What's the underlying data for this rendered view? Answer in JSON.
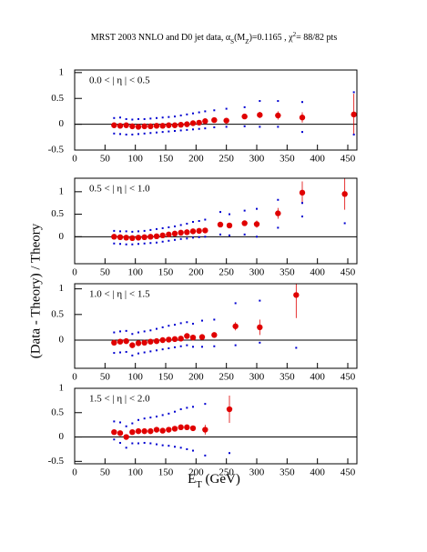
{
  "title": [
    {
      "text": "MRST 2003 NNLO and D0 jet data, α"
    },
    {
      "text": "S",
      "shift": "sub"
    },
    {
      "text": "(M"
    },
    {
      "text": "Z",
      "shift": "sub"
    },
    {
      "text": ")=0.1165 , χ"
    },
    {
      "text": "2",
      "shift": "super"
    },
    {
      "text": "= 88/82 pts"
    }
  ],
  "ylabel": "(Data - Theory) / Theory",
  "xlabel": [
    {
      "text": "E"
    },
    {
      "text": "T",
      "shift": "sub"
    },
    {
      "text": " (GeV)"
    }
  ],
  "chart_data": [
    {
      "type": "scatter",
      "label": "0.0 < | η | < 0.5",
      "x": [
        65,
        75,
        85,
        95,
        105,
        115,
        125,
        135,
        145,
        155,
        165,
        175,
        185,
        195,
        205,
        215,
        230,
        250,
        280,
        305,
        335,
        375,
        460
      ],
      "series": [
        {
          "color": "#e00000",
          "values": [
            -0.02,
            -0.03,
            -0.02,
            -0.04,
            -0.05,
            -0.04,
            -0.04,
            -0.03,
            -0.03,
            -0.02,
            -0.02,
            -0.01,
            0.0,
            0.02,
            0.03,
            0.06,
            0.08,
            0.07,
            0.15,
            0.18,
            0.17,
            0.13,
            0.19
          ],
          "errors": [
            0.02,
            0.02,
            0.02,
            0.02,
            0.02,
            0.02,
            0.02,
            0.02,
            0.02,
            0.02,
            0.02,
            0.02,
            0.02,
            0.02,
            0.02,
            0.03,
            0.03,
            0.03,
            0.05,
            0.06,
            0.08,
            0.1,
            0.4
          ]
        },
        {
          "color": "#0000d0",
          "values": [
            0.12,
            0.13,
            0.1,
            0.09,
            0.1,
            0.1,
            0.11,
            0.12,
            0.13,
            0.14,
            0.15,
            0.17,
            0.19,
            0.21,
            0.23,
            0.25,
            0.27,
            0.3,
            0.33,
            0.45,
            0.45,
            0.43,
            0.62
          ]
        },
        {
          "color": "#0000d0",
          "values": [
            -0.18,
            -0.19,
            -0.2,
            -0.2,
            -0.19,
            -0.18,
            -0.17,
            -0.16,
            -0.15,
            -0.14,
            -0.13,
            -0.12,
            -0.11,
            -0.1,
            -0.09,
            -0.08,
            -0.06,
            -0.05,
            -0.04,
            -0.05,
            -0.05,
            -0.15,
            -0.2
          ]
        }
      ],
      "xlim": [
        0,
        465
      ],
      "xticks": [
        0,
        50,
        100,
        150,
        200,
        250,
        300,
        350,
        400,
        450
      ],
      "ylim": [
        -0.5,
        1.05
      ],
      "yticks": [
        -0.5,
        0,
        0.5,
        1
      ]
    },
    {
      "type": "scatter",
      "label": "0.5 < | η | < 1.0",
      "x": [
        65,
        75,
        85,
        95,
        105,
        115,
        125,
        135,
        145,
        155,
        165,
        175,
        185,
        195,
        205,
        215,
        240,
        255,
        280,
        300,
        335,
        375,
        445
      ],
      "series": [
        {
          "color": "#e00000",
          "values": [
            0,
            -0.01,
            -0.02,
            -0.03,
            -0.02,
            -0.01,
            0,
            0.01,
            0.03,
            0.05,
            0.07,
            0.09,
            0.1,
            0.12,
            0.13,
            0.14,
            0.27,
            0.25,
            0.3,
            0.28,
            0.52,
            0.98,
            0.95
          ],
          "errors": [
            0.02,
            0.02,
            0.02,
            0.02,
            0.02,
            0.02,
            0.02,
            0.02,
            0.02,
            0.02,
            0.02,
            0.02,
            0.02,
            0.02,
            0.03,
            0.03,
            0.04,
            0.05,
            0.05,
            0.08,
            0.12,
            0.25,
            0.35
          ]
        },
        {
          "color": "#0000d0",
          "values": [
            0.13,
            0.12,
            0.12,
            0.11,
            0.12,
            0.13,
            0.15,
            0.17,
            0.19,
            0.21,
            0.23,
            0.26,
            0.29,
            0.33,
            0.35,
            0.38,
            0.55,
            0.5,
            0.58,
            0.62,
            0.82,
            0.75,
            null
          ]
        },
        {
          "color": "#0000d0",
          "values": [
            -0.15,
            -0.16,
            -0.17,
            -0.17,
            -0.16,
            -0.15,
            -0.14,
            -0.13,
            -0.11,
            -0.09,
            -0.07,
            -0.05,
            -0.04,
            -0.02,
            -0.01,
            0.0,
            0.05,
            0.03,
            0.05,
            0.0,
            0.2,
            0.45,
            0.3
          ]
        }
      ],
      "xlim": [
        0,
        465
      ],
      "xticks": [
        0,
        50,
        100,
        150,
        200,
        250,
        300,
        350,
        400,
        450
      ],
      "ylim": [
        -0.6,
        1.3
      ],
      "yticks": [
        0,
        0.5,
        1
      ]
    },
    {
      "type": "scatter",
      "label": "1.0 < | η | < 1.5",
      "x": [
        65,
        75,
        85,
        95,
        105,
        115,
        125,
        135,
        145,
        155,
        165,
        175,
        185,
        195,
        210,
        230,
        265,
        305,
        365
      ],
      "series": [
        {
          "color": "#e00000",
          "values": [
            -0.05,
            -0.03,
            -0.02,
            -0.1,
            -0.06,
            -0.05,
            -0.03,
            -0.02,
            0,
            0.01,
            0.02,
            0.03,
            0.08,
            0.05,
            0.06,
            0.1,
            0.27,
            0.25,
            0.88
          ],
          "errors": [
            0.02,
            0.02,
            0.02,
            0.02,
            0.02,
            0.02,
            0.02,
            0.02,
            0.02,
            0.02,
            0.02,
            0.03,
            0.03,
            0.03,
            0.03,
            0.04,
            0.08,
            0.15,
            0.45
          ]
        },
        {
          "color": "#0000d0",
          "values": [
            0.15,
            0.17,
            0.18,
            0.12,
            0.15,
            0.17,
            0.19,
            0.22,
            0.25,
            0.28,
            0.3,
            0.33,
            0.35,
            0.32,
            0.38,
            0.4,
            0.72,
            0.77,
            null
          ]
        },
        {
          "color": "#0000d0",
          "values": [
            -0.25,
            -0.24,
            -0.23,
            -0.3,
            -0.26,
            -0.24,
            -0.22,
            -0.2,
            -0.18,
            -0.16,
            -0.14,
            -0.12,
            -0.1,
            -0.13,
            -0.13,
            -0.12,
            -0.1,
            -0.05,
            -0.15
          ]
        }
      ],
      "xlim": [
        0,
        465
      ],
      "xticks": [
        0,
        50,
        100,
        150,
        200,
        250,
        300,
        350,
        400,
        450
      ],
      "ylim": [
        -0.55,
        1.1
      ],
      "yticks": [
        0,
        0.5,
        1
      ]
    },
    {
      "type": "scatter",
      "label": "1.5 < | η | < 2.0",
      "x": [
        65,
        75,
        85,
        95,
        105,
        115,
        125,
        135,
        145,
        155,
        165,
        175,
        185,
        195,
        215,
        255
      ],
      "series": [
        {
          "color": "#e00000",
          "values": [
            0.1,
            0.08,
            0.0,
            0.1,
            0.12,
            0.12,
            0.12,
            0.15,
            0.13,
            0.15,
            0.17,
            0.2,
            0.2,
            0.18,
            0.15,
            0.57
          ],
          "errors": [
            0.02,
            0.02,
            0.02,
            0.02,
            0.02,
            0.02,
            0.02,
            0.02,
            0.02,
            0.03,
            0.03,
            0.03,
            0.03,
            0.04,
            0.1,
            0.28
          ]
        },
        {
          "color": "#0000d0",
          "values": [
            0.32,
            0.3,
            0.22,
            0.28,
            0.35,
            0.38,
            0.4,
            0.42,
            0.45,
            0.48,
            0.52,
            0.57,
            0.6,
            0.62,
            0.68,
            null
          ]
        },
        {
          "color": "#0000d0",
          "values": [
            -0.05,
            -0.12,
            -0.22,
            -0.13,
            -0.13,
            -0.12,
            -0.13,
            -0.15,
            -0.17,
            -0.18,
            -0.2,
            -0.22,
            -0.25,
            -0.28,
            -0.38,
            -0.33
          ]
        }
      ],
      "xlim": [
        0,
        465
      ],
      "xticks": [
        0,
        50,
        100,
        150,
        200,
        250,
        300,
        350,
        400,
        450
      ],
      "ylim": [
        -0.55,
        1.0
      ],
      "yticks": [
        -0.5,
        0,
        0.5,
        1
      ]
    }
  ]
}
